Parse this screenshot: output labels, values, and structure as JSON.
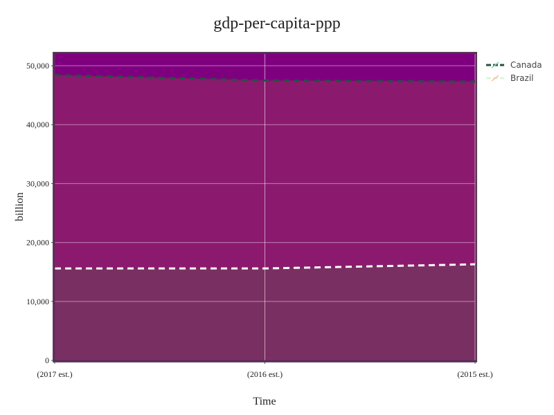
{
  "chart_data": {
    "type": "area",
    "title": "gdp-per-capita-ppp",
    "xlabel": "Time",
    "ylabel": "billion",
    "categories": [
      "(2017 est.)",
      "(2016 est.)",
      "(2015 est.)"
    ],
    "ylim": [
      0,
      52000
    ],
    "yticks": [
      0,
      10000,
      20000,
      30000,
      40000,
      50000
    ],
    "ytick_labels": [
      "0",
      "10,000",
      "20,000",
      "30,000",
      "40,000",
      "50,000"
    ],
    "grid": true,
    "legend_position": "top-right",
    "series": [
      {
        "name": "Canada",
        "values": [
          48400,
          47500,
          47300
        ],
        "line_color": "#2b4d44",
        "fill_color": "#8b1a6f"
      },
      {
        "name": "Brazil",
        "values": [
          15600,
          15600,
          16300
        ],
        "line_color": "#ffffff",
        "fill_color": "#7a2f62"
      }
    ],
    "plot_background": "#7f007f"
  }
}
